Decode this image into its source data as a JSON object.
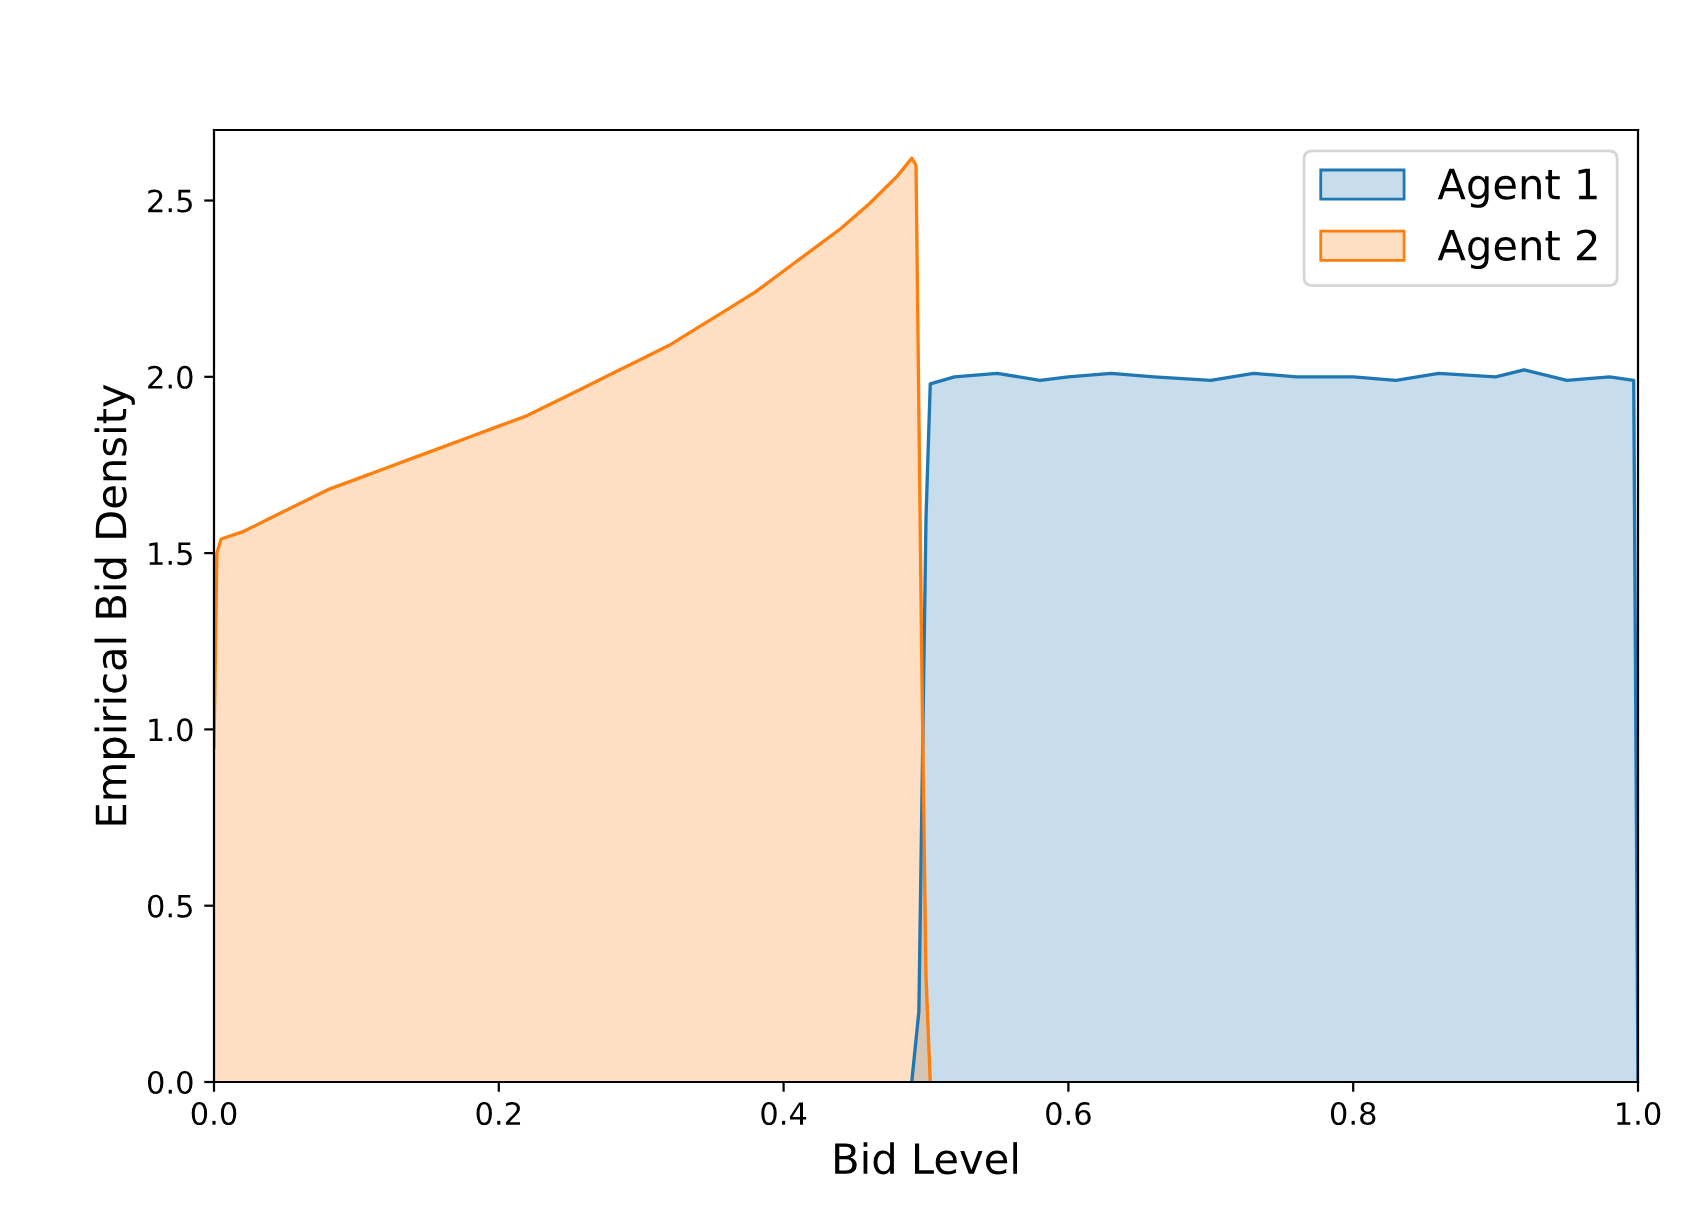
{
  "chart_data": {
    "type": "area",
    "xlabel": "Bid Level",
    "ylabel": "Empirical Bid Density",
    "xlim": [
      0,
      1
    ],
    "ylim": [
      0,
      2.7
    ],
    "xticks": [
      {
        "value": 0,
        "label": "0.0"
      },
      {
        "value": 0.2,
        "label": "0.2"
      },
      {
        "value": 0.4,
        "label": "0.4"
      },
      {
        "value": 0.6,
        "label": "0.6"
      },
      {
        "value": 0.8,
        "label": "0.8"
      },
      {
        "value": 1,
        "label": "1.0"
      }
    ],
    "yticks": [
      {
        "value": 0,
        "label": "0.0"
      },
      {
        "value": 0.5,
        "label": "0.5"
      },
      {
        "value": 1,
        "label": "1.0"
      },
      {
        "value": 1.5,
        "label": "1.5"
      },
      {
        "value": 2,
        "label": "2.0"
      },
      {
        "value": 2.5,
        "label": "2.5"
      }
    ],
    "grid": false,
    "legend": "top right",
    "series": [
      {
        "name": "Agent 1",
        "color": "#1f77b4",
        "x": [
          0.49,
          0.495,
          0.5,
          0.503,
          0.52,
          0.55,
          0.58,
          0.6,
          0.63,
          0.66,
          0.7,
          0.73,
          0.76,
          0.8,
          0.83,
          0.86,
          0.9,
          0.92,
          0.95,
          0.98,
          0.997,
          1.0
        ],
        "values": [
          0,
          0.2,
          1.6,
          1.98,
          2.0,
          2.01,
          1.99,
          2.0,
          2.01,
          2.0,
          1.99,
          2.01,
          2.0,
          2.0,
          1.99,
          2.01,
          2.0,
          2.02,
          1.99,
          2.0,
          1.99,
          0
        ]
      },
      {
        "name": "Agent 2",
        "color": "#ff7f0e",
        "x": [
          0,
          0.002,
          0.005,
          0.02,
          0.04,
          0.06,
          0.08,
          0.1,
          0.12,
          0.14,
          0.16,
          0.18,
          0.2,
          0.22,
          0.24,
          0.26,
          0.28,
          0.3,
          0.32,
          0.34,
          0.36,
          0.38,
          0.4,
          0.42,
          0.44,
          0.46,
          0.48,
          0.49,
          0.493,
          0.497,
          0.5,
          0.503
        ],
        "values": [
          0.95,
          1.5,
          1.54,
          1.56,
          1.6,
          1.64,
          1.68,
          1.71,
          1.74,
          1.77,
          1.8,
          1.83,
          1.86,
          1.89,
          1.93,
          1.97,
          2.01,
          2.05,
          2.09,
          2.14,
          2.19,
          2.24,
          2.3,
          2.36,
          2.42,
          2.49,
          2.57,
          2.62,
          2.6,
          1.2,
          0.3,
          0
        ]
      }
    ]
  }
}
